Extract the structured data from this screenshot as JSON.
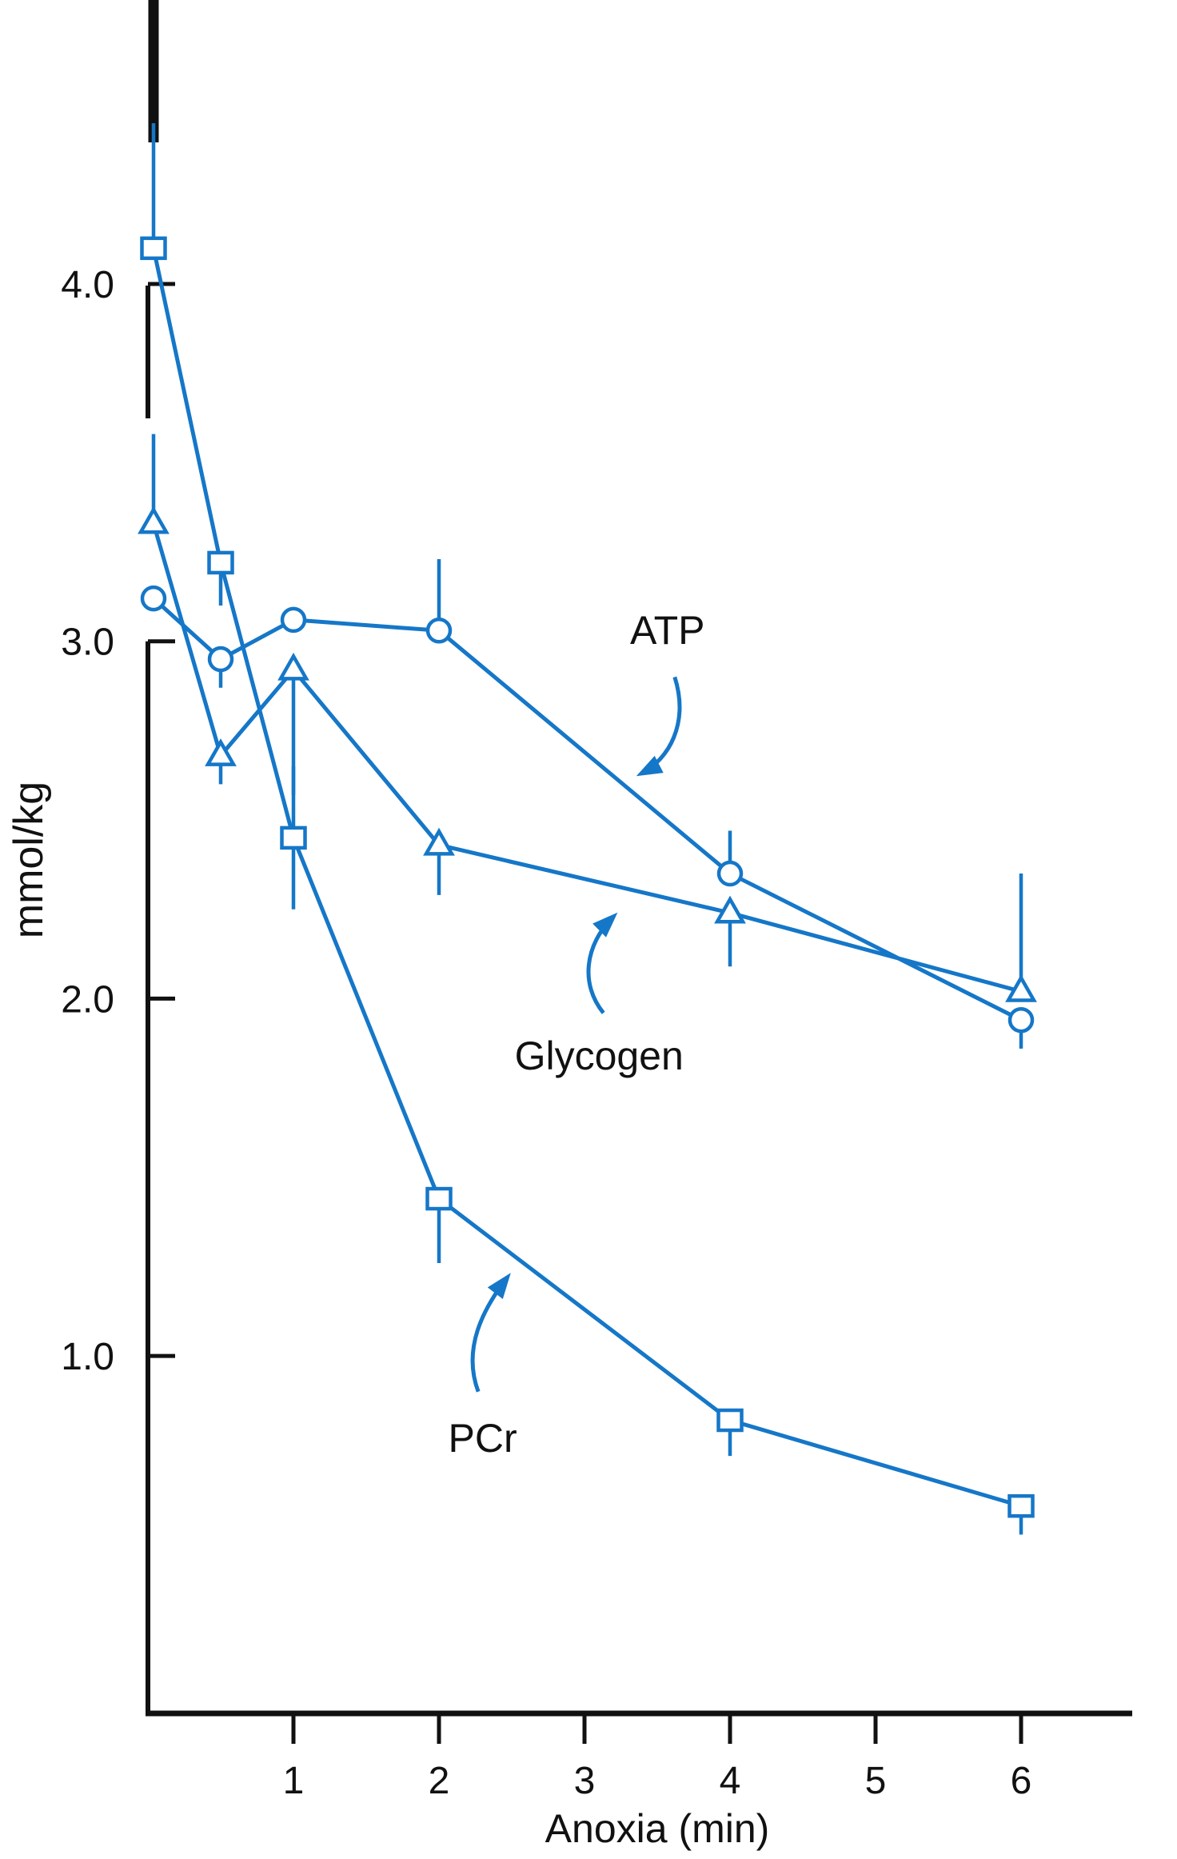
{
  "page": {
    "background": "#ffffff"
  },
  "chart_data": {
    "type": "line",
    "title": "",
    "xlabel": "Anoxia (min)",
    "ylabel": "mmol/kg",
    "x": [
      0,
      0.5,
      1,
      2,
      4,
      6
    ],
    "x_ticks": [
      1,
      2,
      3,
      4,
      5,
      6
    ],
    "x_tick_labels": [
      "1",
      "2",
      "3",
      "4",
      "5",
      "6"
    ],
    "y_ticks": [
      4.0,
      3.0,
      2.0,
      1.0
    ],
    "y_tick_labels": [
      "4.0",
      "3.0",
      "2.0",
      "1.0"
    ],
    "xlim": [
      0,
      6.8
    ],
    "ylim": [
      0,
      4.6
    ],
    "grid": false,
    "legend": "inline-annotations-with-arrows",
    "axis_break": "y-axis drawn in broken segments near top where x=0 markers and error bars overlap it",
    "line_color": "#1577c8",
    "text_color": "#111111",
    "marker_fill": "#ffffff",
    "series": [
      {
        "name": "PCr",
        "marker": "square",
        "values": [
          4.1,
          3.22,
          2.45,
          1.44,
          0.82,
          0.58
        ],
        "err_up": [
          0.35,
          0,
          0.2,
          0,
          0,
          0
        ],
        "err_down": [
          0,
          0.12,
          0.2,
          0.18,
          0.1,
          0.08
        ]
      },
      {
        "name": "ATP",
        "marker": "circle",
        "values": [
          3.12,
          2.95,
          3.06,
          3.03,
          2.35,
          1.94
        ],
        "err_up": [
          0,
          0,
          0,
          0.2,
          0.12,
          0
        ],
        "err_down": [
          0,
          0.08,
          0,
          0,
          0,
          0.08
        ]
      },
      {
        "name": "Glycogen",
        "marker": "triangle",
        "values": [
          3.33,
          2.68,
          2.92,
          2.43,
          2.24,
          2.02
        ],
        "err_up": [
          0.25,
          0,
          0,
          0,
          0,
          0.33
        ],
        "err_down": [
          0,
          0.08,
          0.35,
          0.14,
          0.15,
          0
        ]
      }
    ],
    "annotations": [
      {
        "id": "atp",
        "text": "ATP",
        "tx": 3.57,
        "ty": 3.03,
        "arrow": {
          "x1": 3.62,
          "y1": 2.9,
          "cx1": 3.72,
          "cy1": 2.77,
          "cx2": 3.58,
          "cy2": 2.67,
          "x2": 3.39,
          "y2": 2.63
        }
      },
      {
        "id": "glycogen",
        "text": "Glycogen",
        "tx": 3.1,
        "ty": 1.84,
        "arrow": {
          "x1": 3.13,
          "y1": 1.96,
          "cx1": 2.97,
          "cy1": 2.04,
          "cx2": 3.0,
          "cy2": 2.15,
          "x2": 3.2,
          "y2": 2.23
        }
      },
      {
        "id": "pcr",
        "text": "PCr",
        "tx": 2.3,
        "ty": 0.77,
        "arrow": {
          "x1": 2.27,
          "y1": 0.9,
          "cx1": 2.16,
          "cy1": 1.02,
          "cx2": 2.3,
          "cy2": 1.13,
          "x2": 2.47,
          "y2": 1.22
        }
      }
    ]
  }
}
